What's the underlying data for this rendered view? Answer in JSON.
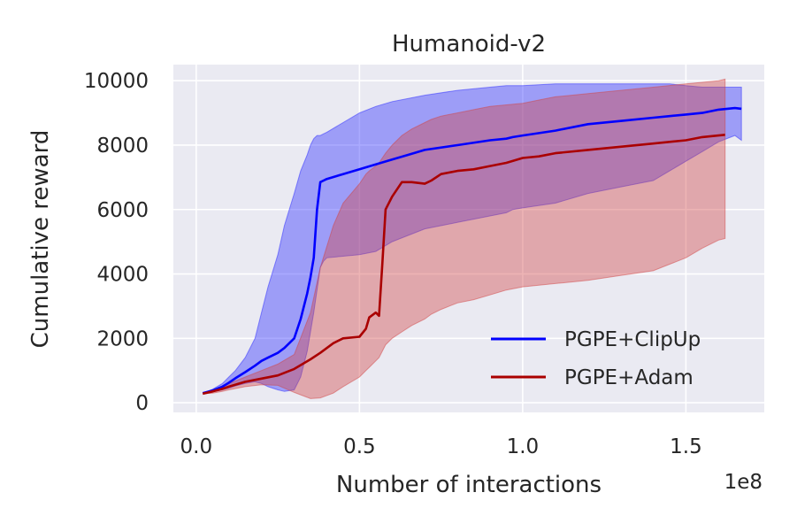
{
  "chart_data": {
    "type": "line",
    "title": "Humanoid-v2",
    "xlabel": "Number of interactions",
    "ylabel": "Cumulative reward",
    "x_offset_label": "1e8",
    "xlim": [
      -0.07,
      1.74
    ],
    "ylim": [
      -300,
      10500
    ],
    "x_ticks": [
      0.0,
      0.5,
      1.0,
      1.5
    ],
    "x_tick_labels": [
      "0.0",
      "0.5",
      "1.0",
      "1.5"
    ],
    "y_ticks": [
      0,
      2000,
      4000,
      6000,
      8000,
      10000
    ],
    "y_tick_labels": [
      "0",
      "2000",
      "4000",
      "6000",
      "8000",
      "10000"
    ],
    "grid": true,
    "legend_position": "bottom-right",
    "series": [
      {
        "name": "PGPE+ClipUp",
        "color": "#0000ff",
        "band_color": "#2a2aff",
        "x": [
          0.02,
          0.05,
          0.08,
          0.1,
          0.12,
          0.15,
          0.18,
          0.2,
          0.22,
          0.25,
          0.27,
          0.3,
          0.32,
          0.34,
          0.35,
          0.36,
          0.37,
          0.38,
          0.39,
          0.4,
          0.45,
          0.5,
          0.55,
          0.6,
          0.65,
          0.7,
          0.8,
          0.9,
          0.95,
          0.97,
          1.0,
          1.1,
          1.2,
          1.3,
          1.4,
          1.45,
          1.5,
          1.55,
          1.6,
          1.65,
          1.67
        ],
        "mean": [
          300,
          380,
          500,
          620,
          760,
          950,
          1150,
          1300,
          1400,
          1550,
          1700,
          2000,
          2600,
          3400,
          3900,
          4500,
          6000,
          6850,
          6900,
          6950,
          7100,
          7250,
          7400,
          7550,
          7700,
          7850,
          8000,
          8150,
          8200,
          8250,
          8300,
          8450,
          8650,
          8750,
          8850,
          8900,
          8950,
          9000,
          9100,
          9150,
          9130
        ],
        "lower": [
          300,
          340,
          400,
          450,
          520,
          600,
          650,
          600,
          500,
          400,
          350,
          400,
          800,
          1600,
          2200,
          2800,
          3500,
          4200,
          4400,
          4500,
          4550,
          4600,
          4700,
          5000,
          5200,
          5400,
          5600,
          5800,
          5900,
          6000,
          6050,
          6200,
          6500,
          6700,
          6900,
          7200,
          7500,
          7800,
          8100,
          8300,
          8150
        ],
        "upper": [
          300,
          420,
          600,
          800,
          1000,
          1400,
          2000,
          2800,
          3600,
          4600,
          5500,
          6500,
          7200,
          7700,
          8000,
          8200,
          8300,
          8300,
          8350,
          8400,
          8700,
          9000,
          9200,
          9350,
          9450,
          9550,
          9700,
          9800,
          9850,
          9850,
          9850,
          9900,
          9900,
          9900,
          9900,
          9900,
          9850,
          9800,
          9800,
          9800,
          9800
        ]
      },
      {
        "name": "PGPE+Adam",
        "color": "#aa0000",
        "band_color": "#d24343",
        "x": [
          0.02,
          0.05,
          0.08,
          0.1,
          0.15,
          0.2,
          0.25,
          0.3,
          0.35,
          0.38,
          0.42,
          0.45,
          0.5,
          0.52,
          0.53,
          0.55,
          0.56,
          0.57,
          0.58,
          0.6,
          0.63,
          0.66,
          0.7,
          0.72,
          0.75,
          0.8,
          0.85,
          0.9,
          0.95,
          1.0,
          1.05,
          1.1,
          1.2,
          1.3,
          1.4,
          1.5,
          1.55,
          1.6,
          1.62
        ],
        "mean": [
          280,
          350,
          430,
          500,
          650,
          750,
          850,
          1050,
          1350,
          1550,
          1850,
          2000,
          2050,
          2300,
          2650,
          2800,
          2700,
          4300,
          6000,
          6400,
          6850,
          6850,
          6800,
          6900,
          7100,
          7200,
          7250,
          7350,
          7450,
          7600,
          7650,
          7750,
          7850,
          7950,
          8050,
          8150,
          8250,
          8300,
          8320
        ],
        "lower": [
          280,
          300,
          350,
          400,
          500,
          560,
          540,
          320,
          130,
          150,
          300,
          500,
          800,
          1000,
          1100,
          1300,
          1400,
          1600,
          1800,
          2000,
          2200,
          2400,
          2600,
          2750,
          2900,
          3100,
          3200,
          3350,
          3500,
          3600,
          3650,
          3700,
          3800,
          3950,
          4100,
          4500,
          4800,
          5050,
          5100
        ],
        "upper": [
          280,
          400,
          500,
          600,
          800,
          1000,
          1200,
          1500,
          2800,
          4200,
          5500,
          6200,
          6800,
          7100,
          7200,
          7350,
          7450,
          7600,
          7750,
          8000,
          8300,
          8500,
          8700,
          8800,
          8900,
          9000,
          9100,
          9200,
          9250,
          9300,
          9400,
          9500,
          9600,
          9700,
          9800,
          9900,
          9950,
          10000,
          10050
        ]
      }
    ]
  }
}
